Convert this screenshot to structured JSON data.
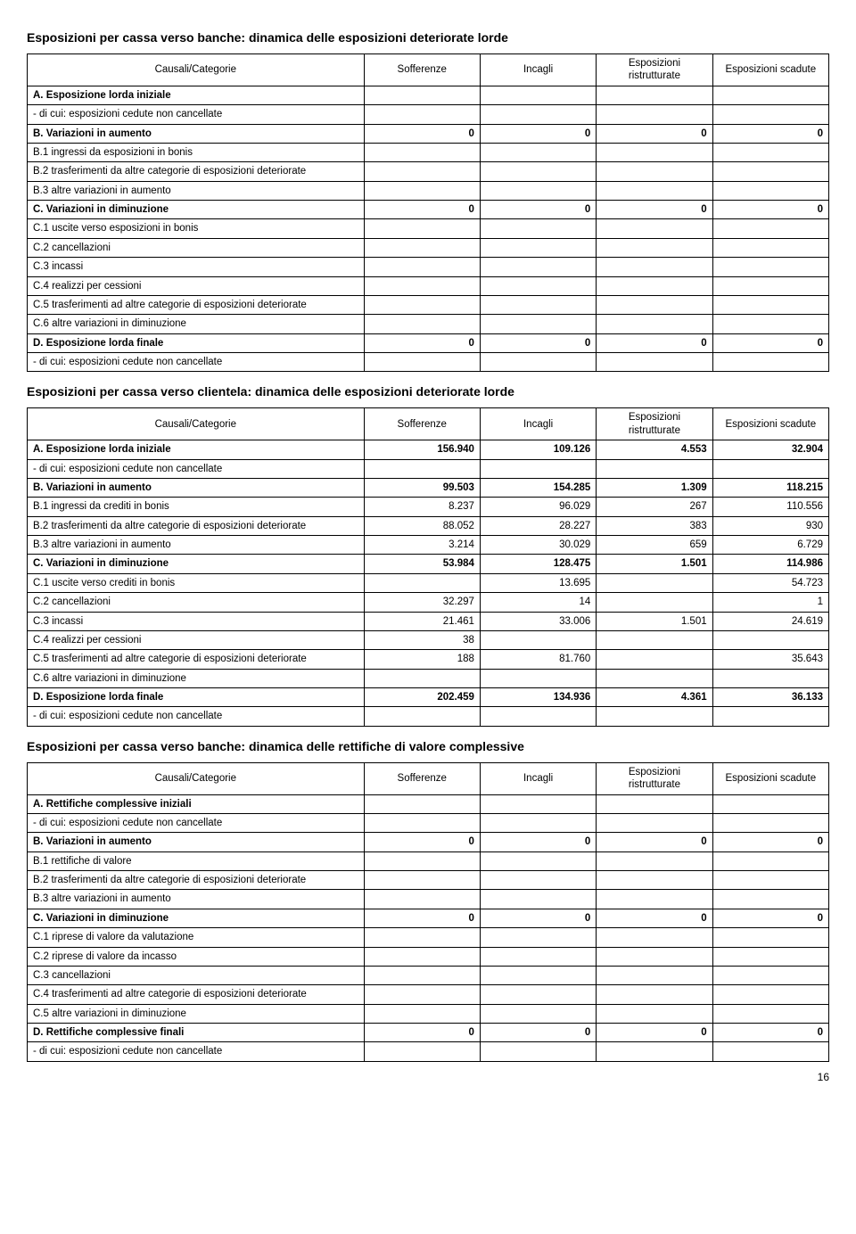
{
  "page_number": "16",
  "headers": {
    "causali": "Causali/Categorie",
    "sofferenze": "Sofferenze",
    "incagli": "Incagli",
    "esp_ristrutturate": "Esposizioni ristrutturate",
    "esp_scadute": "Esposizioni scadute"
  },
  "sections": {
    "t1": {
      "title": "Esposizioni per cassa verso banche: dinamica delle esposizioni deteriorate lorde",
      "rows": [
        {
          "b": true,
          "l": "A. Esposizione lorda iniziale",
          "v": [
            "",
            "",
            "",
            ""
          ]
        },
        {
          "b": false,
          "l": "- di cui: esposizioni cedute non cancellate",
          "v": [
            "",
            "",
            "",
            ""
          ]
        },
        {
          "b": true,
          "l": "B. Variazioni in aumento",
          "v": [
            "0",
            "0",
            "0",
            "0"
          ]
        },
        {
          "b": false,
          "l": "B.1 ingressi da esposizioni in bonis",
          "v": [
            "",
            "",
            "",
            ""
          ]
        },
        {
          "b": false,
          "l": "B.2 trasferimenti da altre categorie di esposizioni deteriorate",
          "v": [
            "",
            "",
            "",
            ""
          ]
        },
        {
          "b": false,
          "l": "B.3 altre variazioni in aumento",
          "v": [
            "",
            "",
            "",
            ""
          ]
        },
        {
          "b": true,
          "l": "C. Variazioni in diminuzione",
          "v": [
            "0",
            "0",
            "0",
            "0"
          ]
        },
        {
          "b": false,
          "l": "C.1 uscite verso esposizioni in bonis",
          "v": [
            "",
            "",
            "",
            ""
          ]
        },
        {
          "b": false,
          "l": "C.2 cancellazioni",
          "v": [
            "",
            "",
            "",
            ""
          ]
        },
        {
          "b": false,
          "l": "C.3 incassi",
          "v": [
            "",
            "",
            "",
            ""
          ]
        },
        {
          "b": false,
          "l": "C.4 realizzi per cessioni",
          "v": [
            "",
            "",
            "",
            ""
          ]
        },
        {
          "b": false,
          "l": "C.5 trasferimenti ad altre categorie di esposizioni deteriorate",
          "v": [
            "",
            "",
            "",
            ""
          ]
        },
        {
          "b": false,
          "l": "C.6 altre variazioni in diminuzione",
          "v": [
            "",
            "",
            "",
            ""
          ]
        },
        {
          "b": true,
          "l": "D. Esposizione lorda finale",
          "v": [
            "0",
            "0",
            "0",
            "0"
          ]
        },
        {
          "b": false,
          "l": "- di cui: esposizioni cedute non cancellate",
          "v": [
            "",
            "",
            "",
            ""
          ]
        }
      ]
    },
    "t2": {
      "title": "Esposizioni per cassa verso clientela: dinamica delle esposizioni deteriorate lorde",
      "rows": [
        {
          "b": true,
          "l": "A. Esposizione lorda iniziale",
          "v": [
            "156.940",
            "109.126",
            "4.553",
            "32.904"
          ]
        },
        {
          "b": false,
          "l": "- di cui: esposizioni cedute non cancellate",
          "v": [
            "",
            "",
            "",
            ""
          ]
        },
        {
          "b": true,
          "l": "B. Variazioni in aumento",
          "v": [
            "99.503",
            "154.285",
            "1.309",
            "118.215"
          ]
        },
        {
          "b": false,
          "l": "B.1 ingressi da crediti in bonis",
          "v": [
            "8.237",
            "96.029",
            "267",
            "110.556"
          ]
        },
        {
          "b": false,
          "l": "B.2 trasferimenti da altre categorie di esposizioni deteriorate",
          "v": [
            "88.052",
            "28.227",
            "383",
            "930"
          ]
        },
        {
          "b": false,
          "l": "B.3 altre variazioni in aumento",
          "v": [
            "3.214",
            "30.029",
            "659",
            "6.729"
          ]
        },
        {
          "b": true,
          "l": "C. Variazioni in diminuzione",
          "v": [
            "53.984",
            "128.475",
            "1.501",
            "114.986"
          ]
        },
        {
          "b": false,
          "l": "C.1 uscite verso crediti in bonis",
          "v": [
            "",
            "13.695",
            "",
            "54.723"
          ]
        },
        {
          "b": false,
          "l": "C.2 cancellazioni",
          "v": [
            "32.297",
            "14",
            "",
            "1"
          ]
        },
        {
          "b": false,
          "l": "C.3 incassi",
          "v": [
            "21.461",
            "33.006",
            "1.501",
            "24.619"
          ]
        },
        {
          "b": false,
          "l": "C.4 realizzi per cessioni",
          "v": [
            "38",
            "",
            "",
            ""
          ]
        },
        {
          "b": false,
          "l": "C.5 trasferimenti ad altre categorie di esposizioni deteriorate",
          "v": [
            "188",
            "81.760",
            "",
            "35.643"
          ]
        },
        {
          "b": false,
          "l": "C.6 altre variazioni in diminuzione",
          "v": [
            "",
            "",
            "",
            ""
          ]
        },
        {
          "b": true,
          "l": "D. Esposizione lorda finale",
          "v": [
            "202.459",
            "134.936",
            "4.361",
            "36.133"
          ]
        },
        {
          "b": false,
          "l": "- di cui: esposizioni cedute non cancellate",
          "v": [
            "",
            "",
            "",
            ""
          ]
        }
      ]
    },
    "t3": {
      "title": "Esposizioni per cassa verso banche: dinamica delle rettifiche di valore complessive",
      "rows": [
        {
          "b": true,
          "l": "A. Rettifiche complessive iniziali",
          "v": [
            "",
            "",
            "",
            ""
          ]
        },
        {
          "b": false,
          "l": "- di cui: esposizioni cedute non cancellate",
          "v": [
            "",
            "",
            "",
            ""
          ]
        },
        {
          "b": true,
          "l": "B. Variazioni in aumento",
          "v": [
            "0",
            "0",
            "0",
            "0"
          ]
        },
        {
          "b": false,
          "l": "B.1 rettifiche di valore",
          "v": [
            "",
            "",
            "",
            ""
          ]
        },
        {
          "b": false,
          "l": "B.2 trasferimenti da altre categorie di esposizioni deteriorate",
          "v": [
            "",
            "",
            "",
            ""
          ]
        },
        {
          "b": false,
          "l": "B.3 altre variazioni in aumento",
          "v": [
            "",
            "",
            "",
            ""
          ]
        },
        {
          "b": true,
          "l": "C. Variazioni in diminuzione",
          "v": [
            "0",
            "0",
            "0",
            "0"
          ]
        },
        {
          "b": false,
          "l": "C.1 riprese di valore da valutazione",
          "v": [
            "",
            "",
            "",
            ""
          ]
        },
        {
          "b": false,
          "l": "C.2 riprese di valore da incasso",
          "v": [
            "",
            "",
            "",
            ""
          ]
        },
        {
          "b": false,
          "l": "C.3 cancellazioni",
          "v": [
            "",
            "",
            "",
            ""
          ]
        },
        {
          "b": false,
          "l": "C.4 trasferimenti ad altre categorie di esposizioni deteriorate",
          "v": [
            "",
            "",
            "",
            ""
          ]
        },
        {
          "b": false,
          "l": "C.5 altre variazioni in diminuzione",
          "v": [
            "",
            "",
            "",
            ""
          ]
        },
        {
          "b": true,
          "l": "D. Rettifiche complessive finali",
          "v": [
            "0",
            "0",
            "0",
            "0"
          ]
        },
        {
          "b": false,
          "l": "- di cui: esposizioni cedute non cancellate",
          "v": [
            "",
            "",
            "",
            ""
          ]
        }
      ]
    }
  }
}
